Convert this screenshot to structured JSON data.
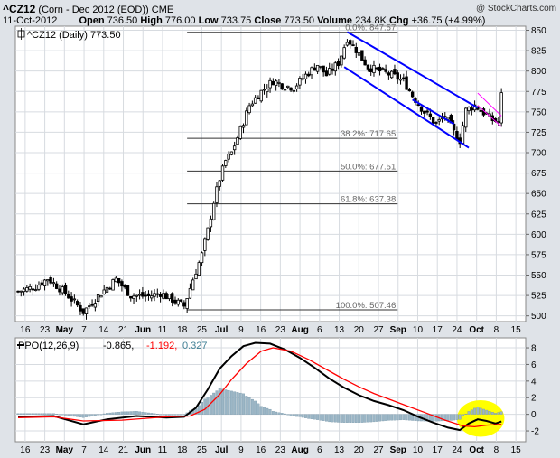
{
  "header": {
    "symbol": "^CZ12",
    "description": "(Corn - Dec 2012 (EOD))",
    "exchange": "CME",
    "watermark": "@ StockCharts.com",
    "date": "11-Oct-2012",
    "open_label": "Open",
    "open": "736.50",
    "high_label": "High",
    "high": "776.00",
    "low_label": "Low",
    "low": "733.75",
    "close_label": "Close",
    "close": "773.50",
    "volume_label": "Volume",
    "volume": "234.8K",
    "chg_label": "Chg",
    "chg": "+36.75 (+4.99%)"
  },
  "colors": {
    "background": "#dfe3e8",
    "panel": "#ffffff",
    "grid": "#d7dbe0",
    "candle": "#000000",
    "channel": "#0000ff",
    "wedge": "#ff00ff",
    "ppo_line": "#000000",
    "ppo_signal": "#ff0000",
    "histogram": "#9bb6c6",
    "highlight": "#ffff00"
  },
  "chart_data": [
    {
      "type": "candlestick",
      "legend": "^CZ12 (Daily) 773.50",
      "legend_icon": "candlestick-icon",
      "x_tick_labels": [
        "16",
        "23",
        "May",
        "7",
        "14",
        "21",
        "Jun",
        "11",
        "18",
        "25",
        "Jul",
        "9",
        "16",
        "23",
        "Aug",
        "6",
        "13",
        "20",
        "27",
        "Sep",
        "10",
        "17",
        "24",
        "Oct",
        "8",
        "15"
      ],
      "y_ticks": [
        500,
        525,
        550,
        575,
        600,
        625,
        650,
        675,
        700,
        725,
        750,
        775,
        800,
        825,
        850
      ],
      "ylim": [
        493,
        855
      ],
      "price_path": [
        {
          "day": 0,
          "price": 530
        },
        {
          "day": 6,
          "price": 536
        },
        {
          "day": 10,
          "price": 546
        },
        {
          "day": 16,
          "price": 528
        },
        {
          "day": 22,
          "price": 505
        },
        {
          "day": 28,
          "price": 528
        },
        {
          "day": 33,
          "price": 545
        },
        {
          "day": 38,
          "price": 525
        },
        {
          "day": 44,
          "price": 524
        },
        {
          "day": 48,
          "price": 528
        },
        {
          "day": 52,
          "price": 520
        },
        {
          "day": 56,
          "price": 512
        },
        {
          "day": 59,
          "price": 545
        },
        {
          "day": 62,
          "price": 575
        },
        {
          "day": 64,
          "price": 605
        },
        {
          "day": 66,
          "price": 640
        },
        {
          "day": 68,
          "price": 668
        },
        {
          "day": 70,
          "price": 690
        },
        {
          "day": 72,
          "price": 700
        },
        {
          "day": 75,
          "price": 728
        },
        {
          "day": 78,
          "price": 758
        },
        {
          "day": 82,
          "price": 775
        },
        {
          "day": 86,
          "price": 788
        },
        {
          "day": 90,
          "price": 782
        },
        {
          "day": 93,
          "price": 780
        },
        {
          "day": 97,
          "price": 795
        },
        {
          "day": 101,
          "price": 808
        },
        {
          "day": 104,
          "price": 795
        },
        {
          "day": 108,
          "price": 810
        },
        {
          "day": 111,
          "price": 840
        },
        {
          "day": 114,
          "price": 826
        },
        {
          "day": 118,
          "price": 805
        },
        {
          "day": 122,
          "price": 800
        },
        {
          "day": 126,
          "price": 795
        },
        {
          "day": 130,
          "price": 788
        },
        {
          "day": 133,
          "price": 770
        },
        {
          "day": 137,
          "price": 750
        },
        {
          "day": 141,
          "price": 735
        },
        {
          "day": 144,
          "price": 745
        },
        {
          "day": 147,
          "price": 725
        },
        {
          "day": 149,
          "price": 715
        },
        {
          "day": 151,
          "price": 752
        },
        {
          "day": 154,
          "price": 758
        },
        {
          "day": 156,
          "price": 752
        },
        {
          "day": 158,
          "price": 746
        },
        {
          "day": 160,
          "price": 740
        },
        {
          "day": 162,
          "price": 738
        },
        {
          "day": 163,
          "price": 773.5
        }
      ],
      "fibonacci": [
        {
          "label": "0.0%: 847.57",
          "value": 847.57
        },
        {
          "label": "38.2%: 717.65",
          "value": 717.65
        },
        {
          "label": "50.0%: 677.51",
          "value": 677.51
        },
        {
          "label": "61.8%: 637.38",
          "value": 637.38
        },
        {
          "label": "100.0%: 507.46",
          "value": 507.46
        }
      ],
      "trend_lines": [
        {
          "name": "channel-upper",
          "color": "channel",
          "from": {
            "day": 111,
            "price": 848
          },
          "to": {
            "day": 155,
            "price": 755
          }
        },
        {
          "name": "channel-lower",
          "color": "channel",
          "from": {
            "day": 110,
            "price": 805
          },
          "to": {
            "day": 152,
            "price": 706
          }
        },
        {
          "name": "channel-mid",
          "color": "channel",
          "from": {
            "day": 133,
            "price": 765
          },
          "to": {
            "day": 147,
            "price": 735
          }
        },
        {
          "name": "wedge-upper",
          "color": "wedge",
          "from": {
            "day": 155,
            "price": 773
          },
          "to": {
            "day": 163,
            "price": 745
          }
        },
        {
          "name": "wedge-lower",
          "color": "wedge",
          "from": {
            "day": 155,
            "price": 758
          },
          "to": {
            "day": 163,
            "price": 732
          }
        }
      ]
    },
    {
      "type": "line",
      "legend_prefix": "PPO(12,26,9)",
      "ppo_value": "-0.865,",
      "signal_value": "-1.192,",
      "hist_value": "0.327",
      "y_ticks": [
        -2,
        0,
        2,
        4,
        6,
        8
      ],
      "ylim": [
        -3.3,
        9.2
      ],
      "x_tick_labels": [
        "16",
        "23",
        "May",
        "7",
        "14",
        "21",
        "Jun",
        "11",
        "18",
        "25",
        "Jul",
        "9",
        "16",
        "23",
        "Aug",
        "6",
        "13",
        "20",
        "27",
        "Sep",
        "10",
        "17",
        "24",
        "Oct",
        "8",
        "15"
      ],
      "series": [
        {
          "color": "ppo_line",
          "points": [
            {
              "day": 0,
              "value": -0.3
            },
            {
              "day": 12,
              "value": -0.2
            },
            {
              "day": 22,
              "value": -1.2
            },
            {
              "day": 30,
              "value": -0.6
            },
            {
              "day": 40,
              "value": -0.2
            },
            {
              "day": 50,
              "value": -0.4
            },
            {
              "day": 56,
              "value": -0.3
            },
            {
              "day": 60,
              "value": 0.8
            },
            {
              "day": 64,
              "value": 3.0
            },
            {
              "day": 68,
              "value": 5.5
            },
            {
              "day": 72,
              "value": 7.0
            },
            {
              "day": 76,
              "value": 8.2
            },
            {
              "day": 80,
              "value": 8.6
            },
            {
              "day": 85,
              "value": 8.5
            },
            {
              "day": 90,
              "value": 7.8
            },
            {
              "day": 95,
              "value": 6.8
            },
            {
              "day": 100,
              "value": 5.6
            },
            {
              "day": 105,
              "value": 4.3
            },
            {
              "day": 110,
              "value": 3.2
            },
            {
              "day": 115,
              "value": 2.3
            },
            {
              "day": 120,
              "value": 1.6
            },
            {
              "day": 125,
              "value": 1.1
            },
            {
              "day": 130,
              "value": 0.5
            },
            {
              "day": 135,
              "value": -0.3
            },
            {
              "day": 140,
              "value": -1.0
            },
            {
              "day": 145,
              "value": -1.6
            },
            {
              "day": 149,
              "value": -1.9
            },
            {
              "day": 152,
              "value": -1.1
            },
            {
              "day": 155,
              "value": -0.6
            },
            {
              "day": 158,
              "value": -0.8
            },
            {
              "day": 161,
              "value": -1.1
            },
            {
              "day": 163,
              "value": -0.865
            }
          ]
        },
        {
          "color": "ppo_signal",
          "points": [
            {
              "day": 0,
              "value": -0.4
            },
            {
              "day": 12,
              "value": -0.3
            },
            {
              "day": 22,
              "value": -0.8
            },
            {
              "day": 35,
              "value": -0.7
            },
            {
              "day": 50,
              "value": -0.3
            },
            {
              "day": 58,
              "value": -0.2
            },
            {
              "day": 63,
              "value": 0.6
            },
            {
              "day": 68,
              "value": 2.4
            },
            {
              "day": 72,
              "value": 4.2
            },
            {
              "day": 77,
              "value": 6.1
            },
            {
              "day": 82,
              "value": 7.6
            },
            {
              "day": 86,
              "value": 8.0
            },
            {
              "day": 92,
              "value": 7.6
            },
            {
              "day": 98,
              "value": 6.6
            },
            {
              "day": 104,
              "value": 5.4
            },
            {
              "day": 110,
              "value": 4.2
            },
            {
              "day": 115,
              "value": 3.3
            },
            {
              "day": 120,
              "value": 2.5
            },
            {
              "day": 126,
              "value": 1.7
            },
            {
              "day": 132,
              "value": 0.9
            },
            {
              "day": 138,
              "value": 0.1
            },
            {
              "day": 144,
              "value": -0.7
            },
            {
              "day": 150,
              "value": -1.4
            },
            {
              "day": 154,
              "value": -1.5
            },
            {
              "day": 158,
              "value": -1.3
            },
            {
              "day": 163,
              "value": -1.192
            }
          ]
        }
      ],
      "histogram_color": "histogram",
      "highlight": {
        "center_day": 156,
        "center_value": -0.5,
        "rx_days": 8,
        "ry_value": 2.2
      }
    }
  ]
}
